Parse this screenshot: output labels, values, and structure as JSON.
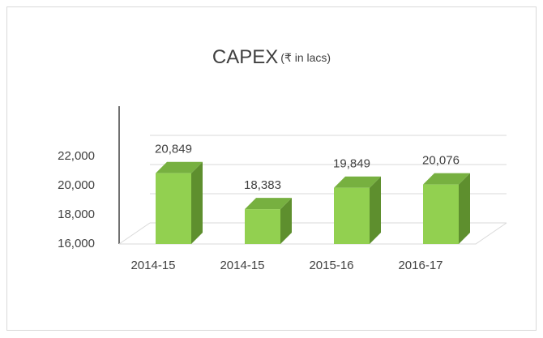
{
  "chart_data": {
    "type": "bar3d",
    "title": "CAPEX",
    "subtitle": "(₹ in lacs)",
    "categories": [
      "2014-15",
      "2014-15",
      "2015-16",
      "2016-17"
    ],
    "values": [
      20849,
      18383,
      19849,
      20076
    ],
    "value_labels": [
      "20,849",
      "18,383",
      "19,849",
      "20,076"
    ],
    "color": "#92d050",
    "ylim": [
      16000,
      24000
    ],
    "yticks": [
      {
        "value": 16000,
        "label": "16,000"
      },
      {
        "value": 18000,
        "label": "18,000"
      },
      {
        "value": 20000,
        "label": "20,000"
      },
      {
        "value": 22000,
        "label": "22,000"
      }
    ],
    "grid": true
  }
}
